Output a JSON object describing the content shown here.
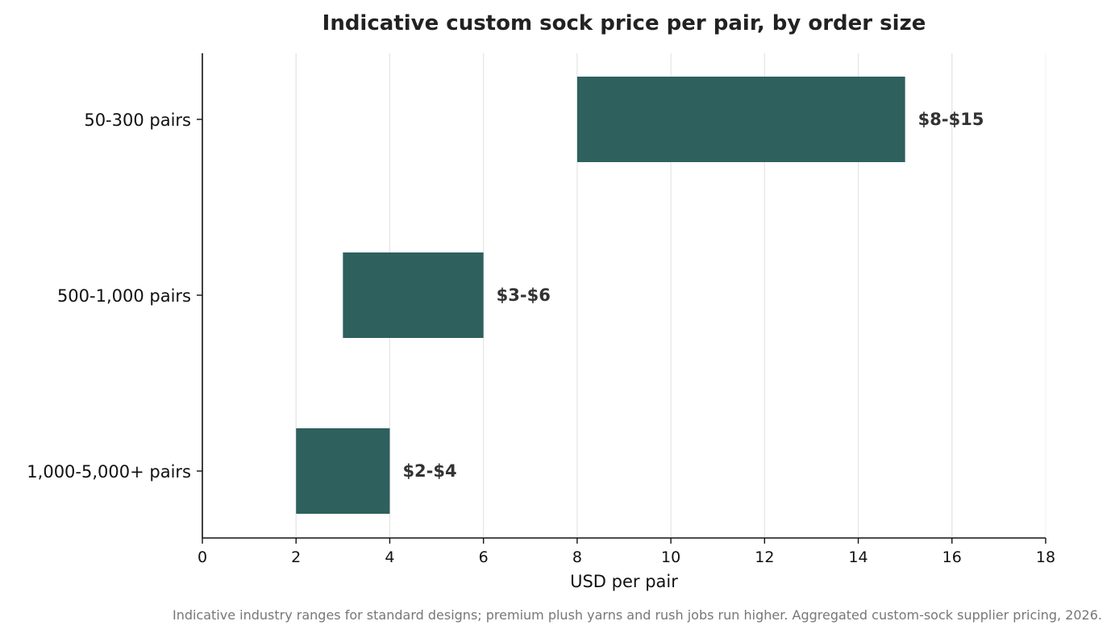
{
  "chart_data": {
    "type": "bar",
    "orientation": "horizontal",
    "subtype": "range",
    "title": "Indicative custom sock price per pair, by order size",
    "xlabel": "USD per pair",
    "ylabel": "",
    "xlim": [
      0,
      18
    ],
    "xticks": [
      0,
      2,
      4,
      6,
      8,
      10,
      12,
      14,
      16,
      18
    ],
    "grid": "vertical",
    "legend": "none",
    "categories": [
      "50-300 pairs",
      "500-1,000 pairs",
      "1,000-5,000+ pairs"
    ],
    "ranges": [
      {
        "low": 8,
        "high": 15,
        "label": "$8-$15"
      },
      {
        "low": 3,
        "high": 6,
        "label": "$3-$6"
      },
      {
        "low": 2,
        "high": 4,
        "label": "$2-$4"
      }
    ],
    "bar_color": "#2e605d",
    "footnote": "Indicative industry ranges for standard designs; premium plush yarns and rush jobs run higher. Aggregated custom-sock supplier pricing, 2026."
  }
}
